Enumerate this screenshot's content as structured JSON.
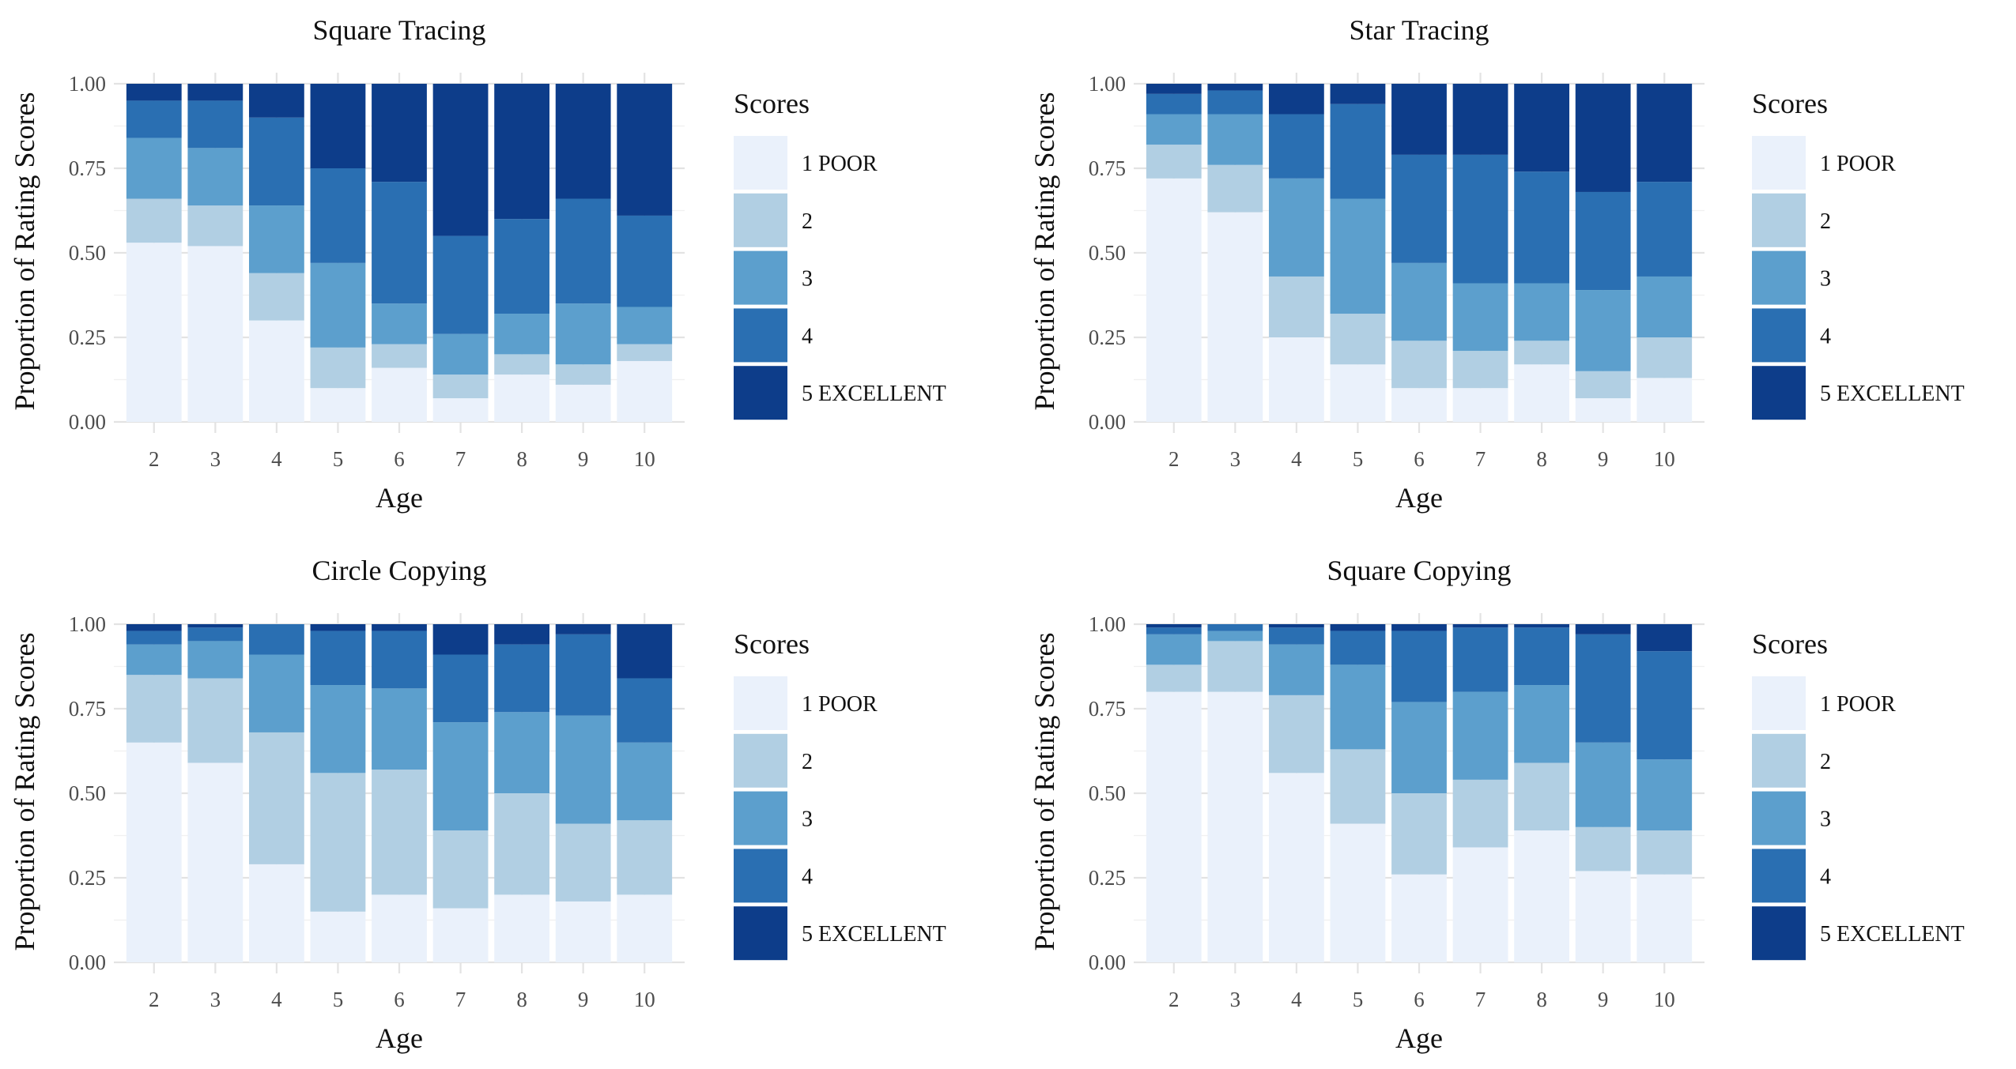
{
  "chart_data": [
    {
      "type": "bar",
      "stacked": true,
      "title": "Square Tracing",
      "xlabel": "Age",
      "ylabel": "Proportion of Rating Scores",
      "categories": [
        "2",
        "3",
        "4",
        "5",
        "6",
        "7",
        "8",
        "9",
        "10"
      ],
      "ylim": [
        0,
        1
      ],
      "yticks": [
        "0.00",
        "0.25",
        "0.50",
        "0.75",
        "1.00"
      ],
      "legend_title": "Scores",
      "series": [
        {
          "name": "1 POOR",
          "color": "#eaf1fb",
          "values": [
            0.53,
            0.52,
            0.3,
            0.1,
            0.16,
            0.07,
            0.14,
            0.11,
            0.18
          ]
        },
        {
          "name": "2",
          "color": "#b1cfe3",
          "values": [
            0.13,
            0.12,
            0.14,
            0.12,
            0.07,
            0.07,
            0.06,
            0.06,
            0.05
          ]
        },
        {
          "name": "3",
          "color": "#5c9fcd",
          "values": [
            0.18,
            0.17,
            0.2,
            0.25,
            0.12,
            0.12,
            0.12,
            0.18,
            0.11
          ]
        },
        {
          "name": "4",
          "color": "#2a6fb2",
          "values": [
            0.11,
            0.14,
            0.26,
            0.28,
            0.36,
            0.29,
            0.28,
            0.31,
            0.27
          ]
        },
        {
          "name": "5 EXCELLENT",
          "color": "#0d3d8a",
          "values": [
            0.05,
            0.05,
            0.1,
            0.25,
            0.29,
            0.45,
            0.4,
            0.34,
            0.39
          ]
        }
      ]
    },
    {
      "type": "bar",
      "stacked": true,
      "title": "Star Tracing",
      "xlabel": "Age",
      "ylabel": "Proportion of Rating Scores",
      "categories": [
        "2",
        "3",
        "4",
        "5",
        "6",
        "7",
        "8",
        "9",
        "10"
      ],
      "ylim": [
        0,
        1
      ],
      "yticks": [
        "0.00",
        "0.25",
        "0.50",
        "0.75",
        "1.00"
      ],
      "legend_title": "Scores",
      "series": [
        {
          "name": "1 POOR",
          "color": "#eaf1fb",
          "values": [
            0.72,
            0.62,
            0.25,
            0.17,
            0.1,
            0.1,
            0.17,
            0.07,
            0.13
          ]
        },
        {
          "name": "2",
          "color": "#b1cfe3",
          "values": [
            0.1,
            0.14,
            0.18,
            0.15,
            0.14,
            0.11,
            0.07,
            0.08,
            0.12
          ]
        },
        {
          "name": "3",
          "color": "#5c9fcd",
          "values": [
            0.09,
            0.15,
            0.29,
            0.34,
            0.23,
            0.2,
            0.17,
            0.24,
            0.18
          ]
        },
        {
          "name": "4",
          "color": "#2a6fb2",
          "values": [
            0.06,
            0.07,
            0.19,
            0.28,
            0.32,
            0.38,
            0.33,
            0.29,
            0.28
          ]
        },
        {
          "name": "5 EXCELLENT",
          "color": "#0d3d8a",
          "values": [
            0.03,
            0.02,
            0.09,
            0.06,
            0.21,
            0.21,
            0.26,
            0.32,
            0.29
          ]
        }
      ]
    },
    {
      "type": "bar",
      "stacked": true,
      "title": "Circle Copying",
      "xlabel": "Age",
      "ylabel": "Proportion of Rating Scores",
      "categories": [
        "2",
        "3",
        "4",
        "5",
        "6",
        "7",
        "8",
        "9",
        "10"
      ],
      "ylim": [
        0,
        1
      ],
      "yticks": [
        "0.00",
        "0.25",
        "0.50",
        "0.75",
        "1.00"
      ],
      "legend_title": "Scores",
      "series": [
        {
          "name": "1 POOR",
          "color": "#eaf1fb",
          "values": [
            0.65,
            0.59,
            0.29,
            0.15,
            0.2,
            0.16,
            0.2,
            0.18,
            0.2
          ]
        },
        {
          "name": "2",
          "color": "#b1cfe3",
          "values": [
            0.2,
            0.25,
            0.39,
            0.41,
            0.37,
            0.23,
            0.3,
            0.23,
            0.22
          ]
        },
        {
          "name": "3",
          "color": "#5c9fcd",
          "values": [
            0.09,
            0.11,
            0.23,
            0.26,
            0.24,
            0.32,
            0.24,
            0.32,
            0.23
          ]
        },
        {
          "name": "4",
          "color": "#2a6fb2",
          "values": [
            0.04,
            0.04,
            0.09,
            0.16,
            0.17,
            0.2,
            0.2,
            0.24,
            0.19
          ]
        },
        {
          "name": "5 EXCELLENT",
          "color": "#0d3d8a",
          "values": [
            0.02,
            0.01,
            0.0,
            0.02,
            0.02,
            0.09,
            0.06,
            0.03,
            0.16
          ]
        }
      ]
    },
    {
      "type": "bar",
      "stacked": true,
      "title": "Square Copying",
      "xlabel": "Age",
      "ylabel": "Proportion of Rating Scores",
      "categories": [
        "2",
        "3",
        "4",
        "5",
        "6",
        "7",
        "8",
        "9",
        "10"
      ],
      "ylim": [
        0,
        1
      ],
      "yticks": [
        "0.00",
        "0.25",
        "0.50",
        "0.75",
        "1.00"
      ],
      "legend_title": "Scores",
      "series": [
        {
          "name": "1 POOR",
          "color": "#eaf1fb",
          "values": [
            0.8,
            0.8,
            0.56,
            0.41,
            0.26,
            0.34,
            0.39,
            0.27,
            0.26
          ]
        },
        {
          "name": "2",
          "color": "#b1cfe3",
          "values": [
            0.08,
            0.15,
            0.23,
            0.22,
            0.24,
            0.2,
            0.2,
            0.13,
            0.13
          ]
        },
        {
          "name": "3",
          "color": "#5c9fcd",
          "values": [
            0.09,
            0.03,
            0.15,
            0.25,
            0.27,
            0.26,
            0.23,
            0.25,
            0.21
          ]
        },
        {
          "name": "4",
          "color": "#2a6fb2",
          "values": [
            0.02,
            0.02,
            0.05,
            0.1,
            0.21,
            0.19,
            0.17,
            0.32,
            0.32
          ]
        },
        {
          "name": "5 EXCELLENT",
          "color": "#0d3d8a",
          "values": [
            0.01,
            0.0,
            0.01,
            0.02,
            0.02,
            0.01,
            0.01,
            0.03,
            0.08
          ]
        }
      ]
    }
  ]
}
